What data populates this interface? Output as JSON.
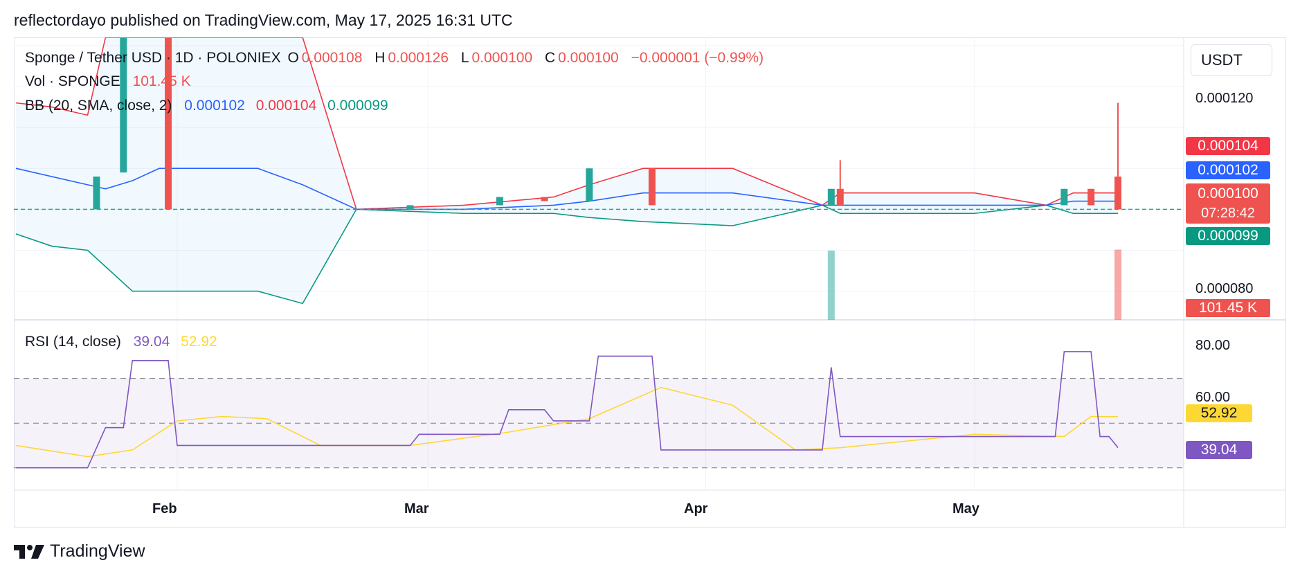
{
  "header": {
    "published": "reflectordayo published on TradingView.com, May 17, 2025 16:31 UTC"
  },
  "legend": {
    "symbol": "Sponge / Tether USD · 1D · POLONIEX",
    "o_label": "O",
    "o_value": "0.000108",
    "h_label": "H",
    "h_value": "0.000126",
    "l_label": "L",
    "l_value": "0.000100",
    "c_label": "C",
    "c_value": "0.000100",
    "change": "−0.000001 (−0.99%)",
    "vol_label": "Vol · SPONGE",
    "vol_value": "101.45 K",
    "bb_label": "BB (20, SMA, close, 2)",
    "bb_basis": "0.000102",
    "bb_upper": "0.000104",
    "bb_lower": "0.000099",
    "rsi_label": "RSI (14, close)",
    "rsi_value": "39.04",
    "rsi_ma": "52.92"
  },
  "price_axis": {
    "currency": "USDT",
    "ticks": [
      "0.000120",
      "0.000080"
    ],
    "badges": {
      "upper": "0.000104",
      "basis": "0.000102",
      "close": "0.000100",
      "countdown": "07:28:42",
      "lower": "0.000099",
      "volume": "101.45 K"
    }
  },
  "rsi_axis": {
    "ticks": [
      "80.00",
      "60.00"
    ],
    "badges": {
      "ma": "52.92",
      "rsi": "39.04"
    }
  },
  "time_axis": [
    "Feb",
    "Mar",
    "Apr",
    "May"
  ],
  "brand": "TradingView",
  "colors": {
    "up": "#26a69a",
    "down": "#ef5350",
    "basis": "#2962ff",
    "upper_band": "#f23645",
    "lower_band": "#089981",
    "rsi": "#7e57c2",
    "rsi_ma": "#fdd835",
    "close_badge": "#ef5350"
  },
  "chart_data": {
    "type": "candlestick",
    "symbol": "Sponge / Tether USD",
    "interval": "1D",
    "exchange": "POLONIEX",
    "x_range": [
      "2025-01-14",
      "2025-05-17"
    ],
    "y_range": [
      7.3e-05,
      0.000142
    ],
    "candles": [
      {
        "date": "2025-01-23",
        "open": 0.0001,
        "close": 0.000108,
        "high": 0.000108,
        "low": 0.0001
      },
      {
        "date": "2025-01-26",
        "open": 0.000109,
        "close": 0.000152,
        "high": 0.000152,
        "low": 0.000109
      },
      {
        "date": "2025-01-31",
        "open": 0.000151,
        "close": 0.0001,
        "high": 0.000151,
        "low": 0.0001
      },
      {
        "date": "2025-02-27",
        "open": 0.0001,
        "close": 0.000101,
        "high": 0.000101,
        "low": 0.0001
      },
      {
        "date": "2025-03-09",
        "open": 0.000101,
        "close": 0.000103,
        "high": 0.000103,
        "low": 0.000101
      },
      {
        "date": "2025-03-14",
        "open": 0.000103,
        "close": 0.000102,
        "high": 0.000103,
        "low": 0.000102
      },
      {
        "date": "2025-03-19",
        "open": 0.000102,
        "close": 0.00011,
        "high": 0.00011,
        "low": 0.000102
      },
      {
        "date": "2025-03-26",
        "open": 0.00011,
        "close": 0.000101,
        "high": 0.00011,
        "low": 0.000101
      },
      {
        "date": "2025-04-15",
        "open": 0.000101,
        "close": 0.000105,
        "high": 0.000105,
        "low": 0.000101
      },
      {
        "date": "2025-04-16",
        "open": 0.000105,
        "close": 0.000101,
        "high": 0.000112,
        "low": 0.000101
      },
      {
        "date": "2025-05-11",
        "open": 0.000101,
        "close": 0.000105,
        "high": 0.000105,
        "low": 0.000101
      },
      {
        "date": "2025-05-14",
        "open": 0.000105,
        "close": 0.000101,
        "high": 0.000105,
        "low": 0.000101
      },
      {
        "date": "2025-05-17",
        "open": 0.000108,
        "close": 0.0001,
        "high": 0.000126,
        "low": 0.0001
      }
    ],
    "bollinger": {
      "dates": [
        "2025-01-14",
        "2025-01-18",
        "2025-01-22",
        "2025-01-24",
        "2025-01-27",
        "2025-01-30",
        "2025-02-10",
        "2025-02-15",
        "2025-02-21",
        "2025-03-05",
        "2025-03-15",
        "2025-03-19",
        "2025-03-25",
        "2025-04-04",
        "2025-04-14",
        "2025-04-16",
        "2025-05-01",
        "2025-05-09",
        "2025-05-12",
        "2025-05-17"
      ],
      "basis": [
        0.00011,
        0.000108,
        0.000106,
        0.000105,
        0.000107,
        0.00011,
        0.00011,
        0.000106,
        0.0001,
        0.0001,
        0.000101,
        0.000102,
        0.000104,
        0.000104,
        0.000101,
        0.000101,
        0.000101,
        0.000101,
        0.000102,
        0.000102
      ],
      "upper": [
        0.000126,
        0.000125,
        0.000123,
        0.000142,
        0.000142,
        0.000142,
        0.000142,
        0.000142,
        0.0001,
        0.000101,
        0.000103,
        0.000106,
        0.00011,
        0.00011,
        0.000101,
        0.000104,
        0.000104,
        0.000101,
        0.000104,
        0.000104
      ],
      "lower": [
        9.4e-05,
        9.1e-05,
        9e-05,
        8.6e-05,
        8e-05,
        8e-05,
        8e-05,
        7.7e-05,
        0.0001,
        9.9e-05,
        9.9e-05,
        9.8e-05,
        9.7e-05,
        9.6e-05,
        0.000101,
        9.9e-05,
        9.9e-05,
        0.000101,
        9.9e-05,
        9.9e-05
      ]
    },
    "volume": [
      {
        "date": "2025-04-15",
        "value": 100
      },
      {
        "date": "2025-05-17",
        "value": 101.45
      }
    ],
    "rsi": {
      "range": [
        20,
        95
      ],
      "bands": [
        70,
        50,
        30
      ],
      "rsi": [
        {
          "date": "2025-01-14",
          "v": 30
        },
        {
          "date": "2025-01-22",
          "v": 30
        },
        {
          "date": "2025-01-24",
          "v": 48
        },
        {
          "date": "2025-01-26",
          "v": 48
        },
        {
          "date": "2025-01-27",
          "v": 78
        },
        {
          "date": "2025-01-31",
          "v": 78
        },
        {
          "date": "2025-02-01",
          "v": 40
        },
        {
          "date": "2025-02-27",
          "v": 40
        },
        {
          "date": "2025-02-28",
          "v": 45
        },
        {
          "date": "2025-03-09",
          "v": 45
        },
        {
          "date": "2025-03-10",
          "v": 56
        },
        {
          "date": "2025-03-14",
          "v": 56
        },
        {
          "date": "2025-03-15",
          "v": 51
        },
        {
          "date": "2025-03-19",
          "v": 51
        },
        {
          "date": "2025-03-20",
          "v": 80
        },
        {
          "date": "2025-03-26",
          "v": 80
        },
        {
          "date": "2025-03-27",
          "v": 38
        },
        {
          "date": "2025-04-14",
          "v": 38
        },
        {
          "date": "2025-04-15",
          "v": 75
        },
        {
          "date": "2025-04-16",
          "v": 44
        },
        {
          "date": "2025-05-10",
          "v": 44
        },
        {
          "date": "2025-05-11",
          "v": 82
        },
        {
          "date": "2025-05-14",
          "v": 82
        },
        {
          "date": "2025-05-15",
          "v": 44
        },
        {
          "date": "2025-05-16",
          "v": 44
        },
        {
          "date": "2025-05-17",
          "v": 39.04
        }
      ],
      "ma": [
        {
          "date": "2025-01-14",
          "v": 40
        },
        {
          "date": "2025-01-22",
          "v": 35
        },
        {
          "date": "2025-01-27",
          "v": 38
        },
        {
          "date": "2025-02-01",
          "v": 51
        },
        {
          "date": "2025-02-06",
          "v": 53
        },
        {
          "date": "2025-02-11",
          "v": 52
        },
        {
          "date": "2025-02-17",
          "v": 40
        },
        {
          "date": "2025-02-27",
          "v": 40
        },
        {
          "date": "2025-03-10",
          "v": 46
        },
        {
          "date": "2025-03-19",
          "v": 52
        },
        {
          "date": "2025-03-27",
          "v": 66
        },
        {
          "date": "2025-04-04",
          "v": 58
        },
        {
          "date": "2025-04-11",
          "v": 38
        },
        {
          "date": "2025-04-16",
          "v": 39
        },
        {
          "date": "2025-05-01",
          "v": 45
        },
        {
          "date": "2025-05-11",
          "v": 44
        },
        {
          "date": "2025-05-14",
          "v": 53
        },
        {
          "date": "2025-05-17",
          "v": 52.92
        }
      ]
    }
  }
}
